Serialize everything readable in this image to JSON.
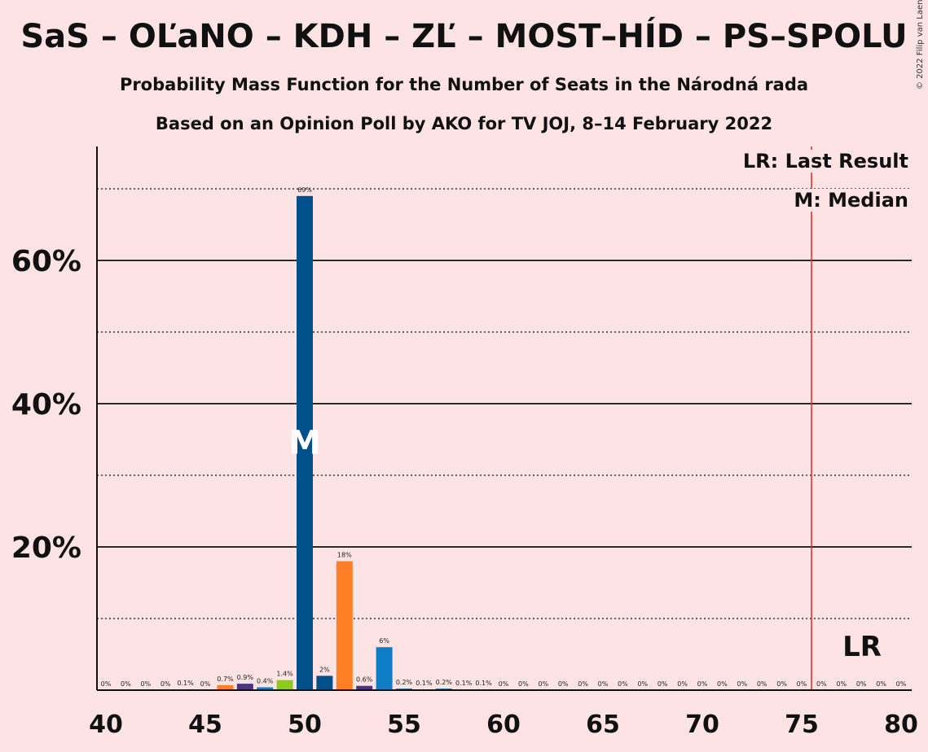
{
  "title": "SaS – OĽaNO – KDH – ZĽ – MOST–HÍD – PS–SPOLU",
  "subtitle1": "Probability Mass Function for the Number of Seats in the Národná rada",
  "subtitle2": "Based on an Opinion Poll by AKO for TV JOJ, 8–14 February 2022",
  "copyright": "© 2022 Filip van Laenen",
  "legend": {
    "last_result": "LR: Last Result",
    "median": "M: Median"
  },
  "colors": {
    "background": "#fde3e3",
    "navy": "#00508c",
    "orange": "#ff7f27",
    "purple": "#4b3480",
    "blue": "#0f7ec7",
    "green": "#8fc820",
    "last_result_line": "#e8222b"
  },
  "chart_data": {
    "type": "bar",
    "xlim": [
      40,
      80
    ],
    "ylim": [
      0,
      75
    ],
    "x_ticks": [
      40,
      45,
      50,
      55,
      60,
      65,
      70,
      75,
      80
    ],
    "y_ticks": [
      {
        "value": 20,
        "label": "20%"
      },
      {
        "value": 40,
        "label": "40%"
      },
      {
        "value": 60,
        "label": "60%"
      }
    ],
    "grid_dotted": [
      10,
      30,
      50,
      70
    ],
    "median_seat": 50,
    "median_marker": "M",
    "last_result_seat": 76,
    "last_result_marker": "LR",
    "bars": [
      {
        "seat": 40,
        "value": 0,
        "label": "0%",
        "color": "navy"
      },
      {
        "seat": 41,
        "value": 0,
        "label": "0%",
        "color": "navy"
      },
      {
        "seat": 42,
        "value": 0,
        "label": "0%",
        "color": "navy"
      },
      {
        "seat": 43,
        "value": 0,
        "label": "0%",
        "color": "navy"
      },
      {
        "seat": 44,
        "value": 0.1,
        "label": "0.1%",
        "color": "navy"
      },
      {
        "seat": 45,
        "value": 0,
        "label": "0%",
        "color": "navy"
      },
      {
        "seat": 46,
        "value": 0.7,
        "label": "0.7%",
        "color": "orange"
      },
      {
        "seat": 47,
        "value": 0.9,
        "label": "0.9%",
        "color": "purple"
      },
      {
        "seat": 48,
        "value": 0.4,
        "label": "0.4%",
        "color": "blue"
      },
      {
        "seat": 49,
        "value": 1.4,
        "label": "1.4%",
        "color": "green"
      },
      {
        "seat": 50,
        "value": 69,
        "label": "69%",
        "color": "navy"
      },
      {
        "seat": 51,
        "value": 2,
        "label": "2%",
        "color": "navy"
      },
      {
        "seat": 52,
        "value": 18,
        "label": "18%",
        "color": "orange"
      },
      {
        "seat": 53,
        "value": 0.6,
        "label": "0.6%",
        "color": "purple"
      },
      {
        "seat": 54,
        "value": 6,
        "label": "6%",
        "color": "blue"
      },
      {
        "seat": 55,
        "value": 0.2,
        "label": "0.2%",
        "color": "navy"
      },
      {
        "seat": 56,
        "value": 0.1,
        "label": "0.1%",
        "color": "navy"
      },
      {
        "seat": 57,
        "value": 0.2,
        "label": "0.2%",
        "color": "navy"
      },
      {
        "seat": 58,
        "value": 0.1,
        "label": "0.1%",
        "color": "navy"
      },
      {
        "seat": 59,
        "value": 0.1,
        "label": "0.1%",
        "color": "navy"
      },
      {
        "seat": 60,
        "value": 0,
        "label": "0%",
        "color": "navy"
      },
      {
        "seat": 61,
        "value": 0,
        "label": "0%",
        "color": "navy"
      },
      {
        "seat": 62,
        "value": 0,
        "label": "0%",
        "color": "navy"
      },
      {
        "seat": 63,
        "value": 0,
        "label": "0%",
        "color": "navy"
      },
      {
        "seat": 64,
        "value": 0,
        "label": "0%",
        "color": "navy"
      },
      {
        "seat": 65,
        "value": 0,
        "label": "0%",
        "color": "navy"
      },
      {
        "seat": 66,
        "value": 0,
        "label": "0%",
        "color": "navy"
      },
      {
        "seat": 67,
        "value": 0,
        "label": "0%",
        "color": "navy"
      },
      {
        "seat": 68,
        "value": 0,
        "label": "0%",
        "color": "navy"
      },
      {
        "seat": 69,
        "value": 0,
        "label": "0%",
        "color": "navy"
      },
      {
        "seat": 70,
        "value": 0,
        "label": "0%",
        "color": "navy"
      },
      {
        "seat": 71,
        "value": 0,
        "label": "0%",
        "color": "navy"
      },
      {
        "seat": 72,
        "value": 0,
        "label": "0%",
        "color": "navy"
      },
      {
        "seat": 73,
        "value": 0,
        "label": "0%",
        "color": "navy"
      },
      {
        "seat": 74,
        "value": 0,
        "label": "0%",
        "color": "navy"
      },
      {
        "seat": 75,
        "value": 0,
        "label": "0%",
        "color": "navy"
      },
      {
        "seat": 76,
        "value": 0,
        "label": "0%",
        "color": "navy"
      },
      {
        "seat": 77,
        "value": 0,
        "label": "0%",
        "color": "navy"
      },
      {
        "seat": 78,
        "value": 0,
        "label": "0%",
        "color": "navy"
      },
      {
        "seat": 79,
        "value": 0,
        "label": "0%",
        "color": "navy"
      },
      {
        "seat": 80,
        "value": 0,
        "label": "0%",
        "color": "navy"
      }
    ]
  }
}
